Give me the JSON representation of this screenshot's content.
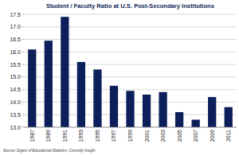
{
  "chart_data": {
    "type": "bar",
    "title": "Student / Faculty Ratio at U.S. Post-Secondary Institutions",
    "annotations": [
      "Source: Digest of Educational Statistics, Connolly Insight"
    ],
    "categories": [
      "1987",
      "1989",
      "1991",
      "1993",
      "1995",
      "1997",
      "1999",
      "2001",
      "2003",
      "2005",
      "2007",
      "2009",
      "2011"
    ],
    "values": [
      16.1,
      16.45,
      17.4,
      15.6,
      15.3,
      14.65,
      14.45,
      14.3,
      14.4,
      13.6,
      13.3,
      14.2,
      13.8
    ],
    "color": "#0d1f5a",
    "ylim": [
      13,
      17.5
    ],
    "yticks": [
      {
        "value": 13,
        "label": "13.0"
      },
      13.5,
      {
        "value": 14,
        "label": "14.0"
      },
      14.5,
      {
        "value": 15,
        "label": "15.0"
      },
      15.5,
      {
        "value": 16,
        "label": "16.0"
      },
      16.5,
      {
        "value": 17,
        "label": "17.0"
      },
      17.5
    ],
    "grid": true
  }
}
